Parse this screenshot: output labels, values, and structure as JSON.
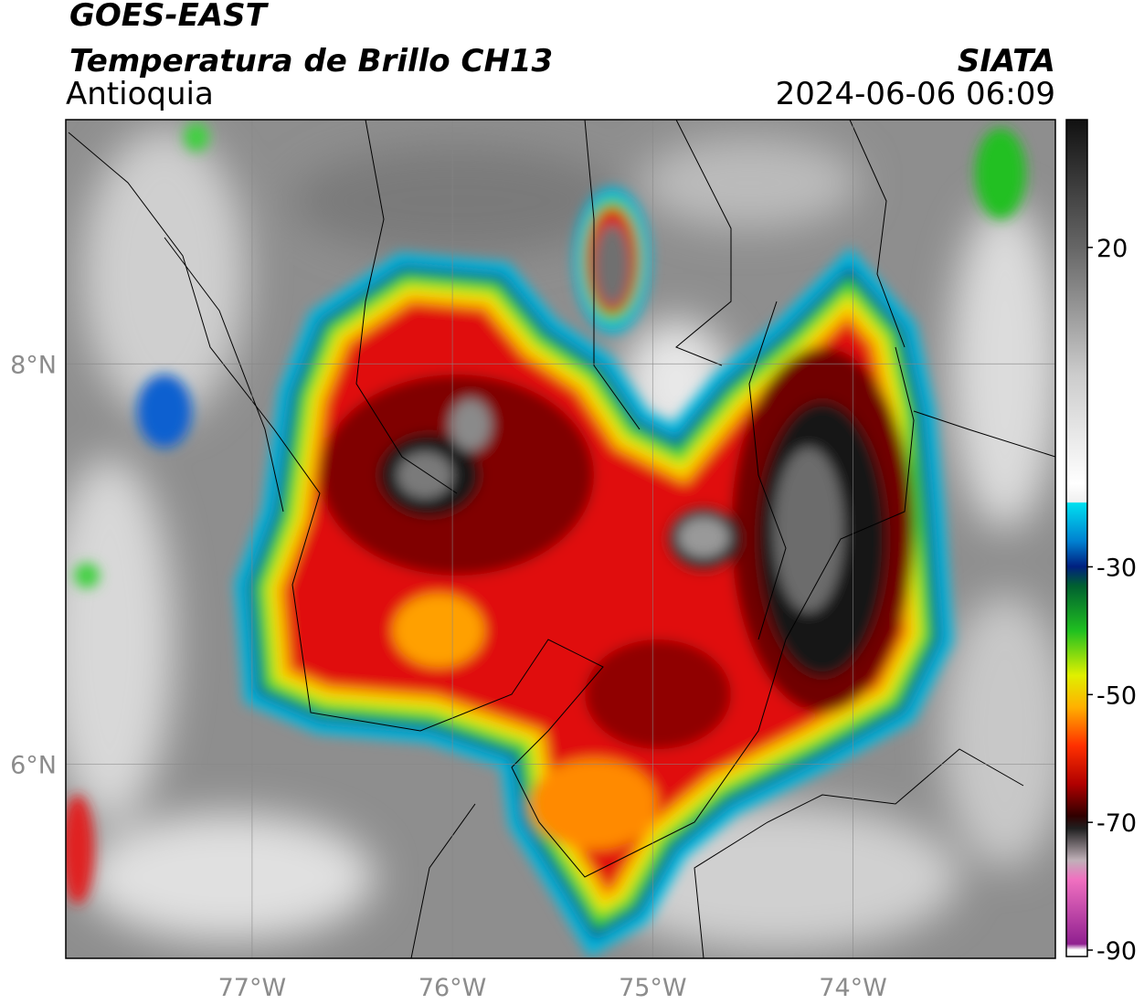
{
  "header": {
    "title": "GOES-EAST",
    "subtitle": "Temperatura de Brillo CH13",
    "region": "Antioquia",
    "source": "SIATA",
    "timestamp": "2024-06-06 06:09"
  },
  "map": {
    "xlim": [
      -77.93,
      -72.99
    ],
    "ylim": [
      5.03,
      9.22
    ],
    "lon_ticks": [
      {
        "value": -77,
        "label": "77°W"
      },
      {
        "value": -76,
        "label": "76°W"
      },
      {
        "value": -75,
        "label": "75°W"
      },
      {
        "value": -74,
        "label": "74°W"
      }
    ],
    "lat_ticks": [
      {
        "value": 8,
        "label": "8°N"
      },
      {
        "value": 6,
        "label": "6°N"
      }
    ]
  },
  "colorbar": {
    "lim": [
      -91,
      40
    ],
    "ticks": [
      20,
      -30,
      -50,
      -70,
      -90
    ]
  }
}
